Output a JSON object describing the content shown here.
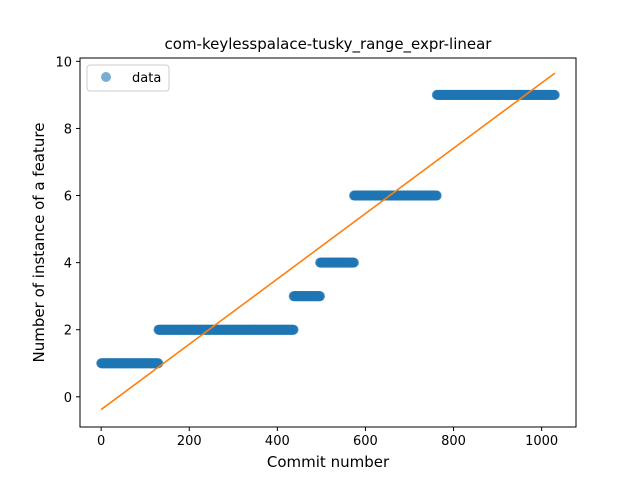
{
  "chart_data": {
    "type": "scatter",
    "title": "com-keylesspalace-tusky_range_expr-linear",
    "xlabel": "Commit number",
    "ylabel": "Number of instance of a feature",
    "xlim": [
      -48,
      1078
    ],
    "ylim": [
      -0.9,
      10.1
    ],
    "xticks": [
      0,
      200,
      400,
      600,
      800,
      1000
    ],
    "yticks": [
      0,
      2,
      4,
      6,
      8,
      10
    ],
    "grid": false,
    "legend": {
      "position": "top-left",
      "entries": [
        "data"
      ]
    },
    "series": [
      {
        "name": "data",
        "kind": "scatter",
        "color": "#1f77b4",
        "alpha": 0.6,
        "segments": [
          {
            "x_start": 0,
            "x_end": 130,
            "y": 1
          },
          {
            "x_start": 130,
            "x_end": 437,
            "y": 2
          },
          {
            "x_start": 437,
            "x_end": 497,
            "y": 3
          },
          {
            "x_start": 497,
            "x_end": 574,
            "y": 4
          },
          {
            "x_start": 574,
            "x_end": 762,
            "y": 6
          },
          {
            "x_start": 762,
            "x_end": 1030,
            "y": 9
          }
        ]
      },
      {
        "kind": "line",
        "color": "#ff7f0e",
        "x": [
          0,
          1030
        ],
        "y": [
          -0.38,
          9.65
        ]
      }
    ]
  }
}
